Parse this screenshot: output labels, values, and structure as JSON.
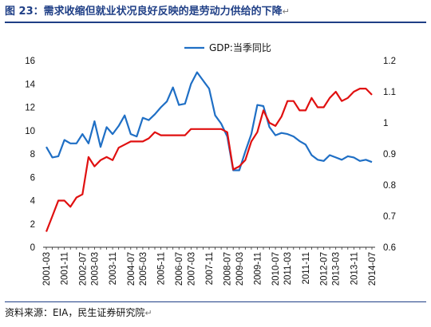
{
  "title": "图 23：需求收缩但就业状况良好反映的是劳动力供给的下降",
  "source": "资料来源：EIA，民生证券研究院",
  "para_mark": "↵",
  "colors": {
    "gdp": "#1f6fc5",
    "series2": "#e01010",
    "title": "#1f3f86"
  },
  "chart_data": {
    "type": "line",
    "legend": {
      "position": "top-center",
      "entries": [
        "GDP:当季同比"
      ]
    },
    "y_left": {
      "range": [
        0,
        16
      ],
      "ticks": [
        "0",
        "2",
        "4",
        "6",
        "8",
        "10",
        "12",
        "14",
        "16"
      ]
    },
    "y_right": {
      "range": [
        0.6,
        1.2
      ],
      "ticks": [
        "0.6",
        "0.7",
        "0.8",
        "0.9",
        "1",
        "1.1",
        "1.2"
      ]
    },
    "x_tick_labels": [
      "2001-03",
      "2001-11",
      "2002-07",
      "2003-03",
      "2003-11",
      "2004-07",
      "2005-03",
      "2005-11",
      "2006-07",
      "2007-03",
      "2007-11",
      "2008-07",
      "2009-03",
      "2009-11",
      "2010-07",
      "2011-03",
      "2011-11",
      "2012-07",
      "2013-03",
      "2013-11",
      "2014-07"
    ],
    "x_quarters": [
      "2001-Q1",
      "2001-Q2",
      "2001-Q3",
      "2001-Q4",
      "2002-Q1",
      "2002-Q2",
      "2002-Q3",
      "2002-Q4",
      "2003-Q1",
      "2003-Q2",
      "2003-Q3",
      "2003-Q4",
      "2004-Q1",
      "2004-Q2",
      "2004-Q3",
      "2004-Q4",
      "2005-Q1",
      "2005-Q2",
      "2005-Q3",
      "2005-Q4",
      "2006-Q1",
      "2006-Q2",
      "2006-Q3",
      "2006-Q4",
      "2007-Q1",
      "2007-Q2",
      "2007-Q3",
      "2007-Q4",
      "2008-Q1",
      "2008-Q2",
      "2008-Q3",
      "2008-Q4",
      "2009-Q1",
      "2009-Q2",
      "2009-Q3",
      "2009-Q4",
      "2010-Q1",
      "2010-Q2",
      "2010-Q3",
      "2010-Q4",
      "2011-Q1",
      "2011-Q2",
      "2011-Q3",
      "2011-Q4",
      "2012-Q1",
      "2012-Q2",
      "2012-Q3",
      "2012-Q4",
      "2013-Q1",
      "2013-Q2",
      "2013-Q3",
      "2013-Q4",
      "2014-Q1",
      "2014-Q2",
      "2014-Q3"
    ],
    "series": [
      {
        "name": "GDP:当季同比",
        "axis": "left",
        "values": [
          8.6,
          7.7,
          7.8,
          9.2,
          8.9,
          8.9,
          9.7,
          8.9,
          10.8,
          8.6,
          10.3,
          9.7,
          10.4,
          11.3,
          9.7,
          9.5,
          11.1,
          10.9,
          11.4,
          12.0,
          12.5,
          13.7,
          12.2,
          12.3,
          14.0,
          15.0,
          14.3,
          13.6,
          11.3,
          10.6,
          9.5,
          6.6,
          6.6,
          8.2,
          9.7,
          12.2,
          12.1,
          10.3,
          9.6,
          9.8,
          9.7,
          9.5,
          9.1,
          8.8,
          7.9,
          7.5,
          7.4,
          7.9,
          7.7,
          7.5,
          7.8,
          7.7,
          7.4,
          7.5,
          7.3
        ]
      },
      {
        "axis": "right",
        "values": [
          0.65,
          0.7,
          0.75,
          0.75,
          0.73,
          0.76,
          0.77,
          0.89,
          0.86,
          0.88,
          0.89,
          0.88,
          0.92,
          0.93,
          0.94,
          0.94,
          0.94,
          0.95,
          0.97,
          0.96,
          0.96,
          0.96,
          0.96,
          0.96,
          0.98,
          0.98,
          0.98,
          0.98,
          0.98,
          0.98,
          0.97,
          0.85,
          0.86,
          0.88,
          0.94,
          0.97,
          1.04,
          1.0,
          0.99,
          1.02,
          1.07,
          1.07,
          1.04,
          1.04,
          1.08,
          1.05,
          1.05,
          1.08,
          1.1,
          1.07,
          1.08,
          1.1,
          1.11,
          1.11,
          1.09
        ]
      }
    ]
  }
}
